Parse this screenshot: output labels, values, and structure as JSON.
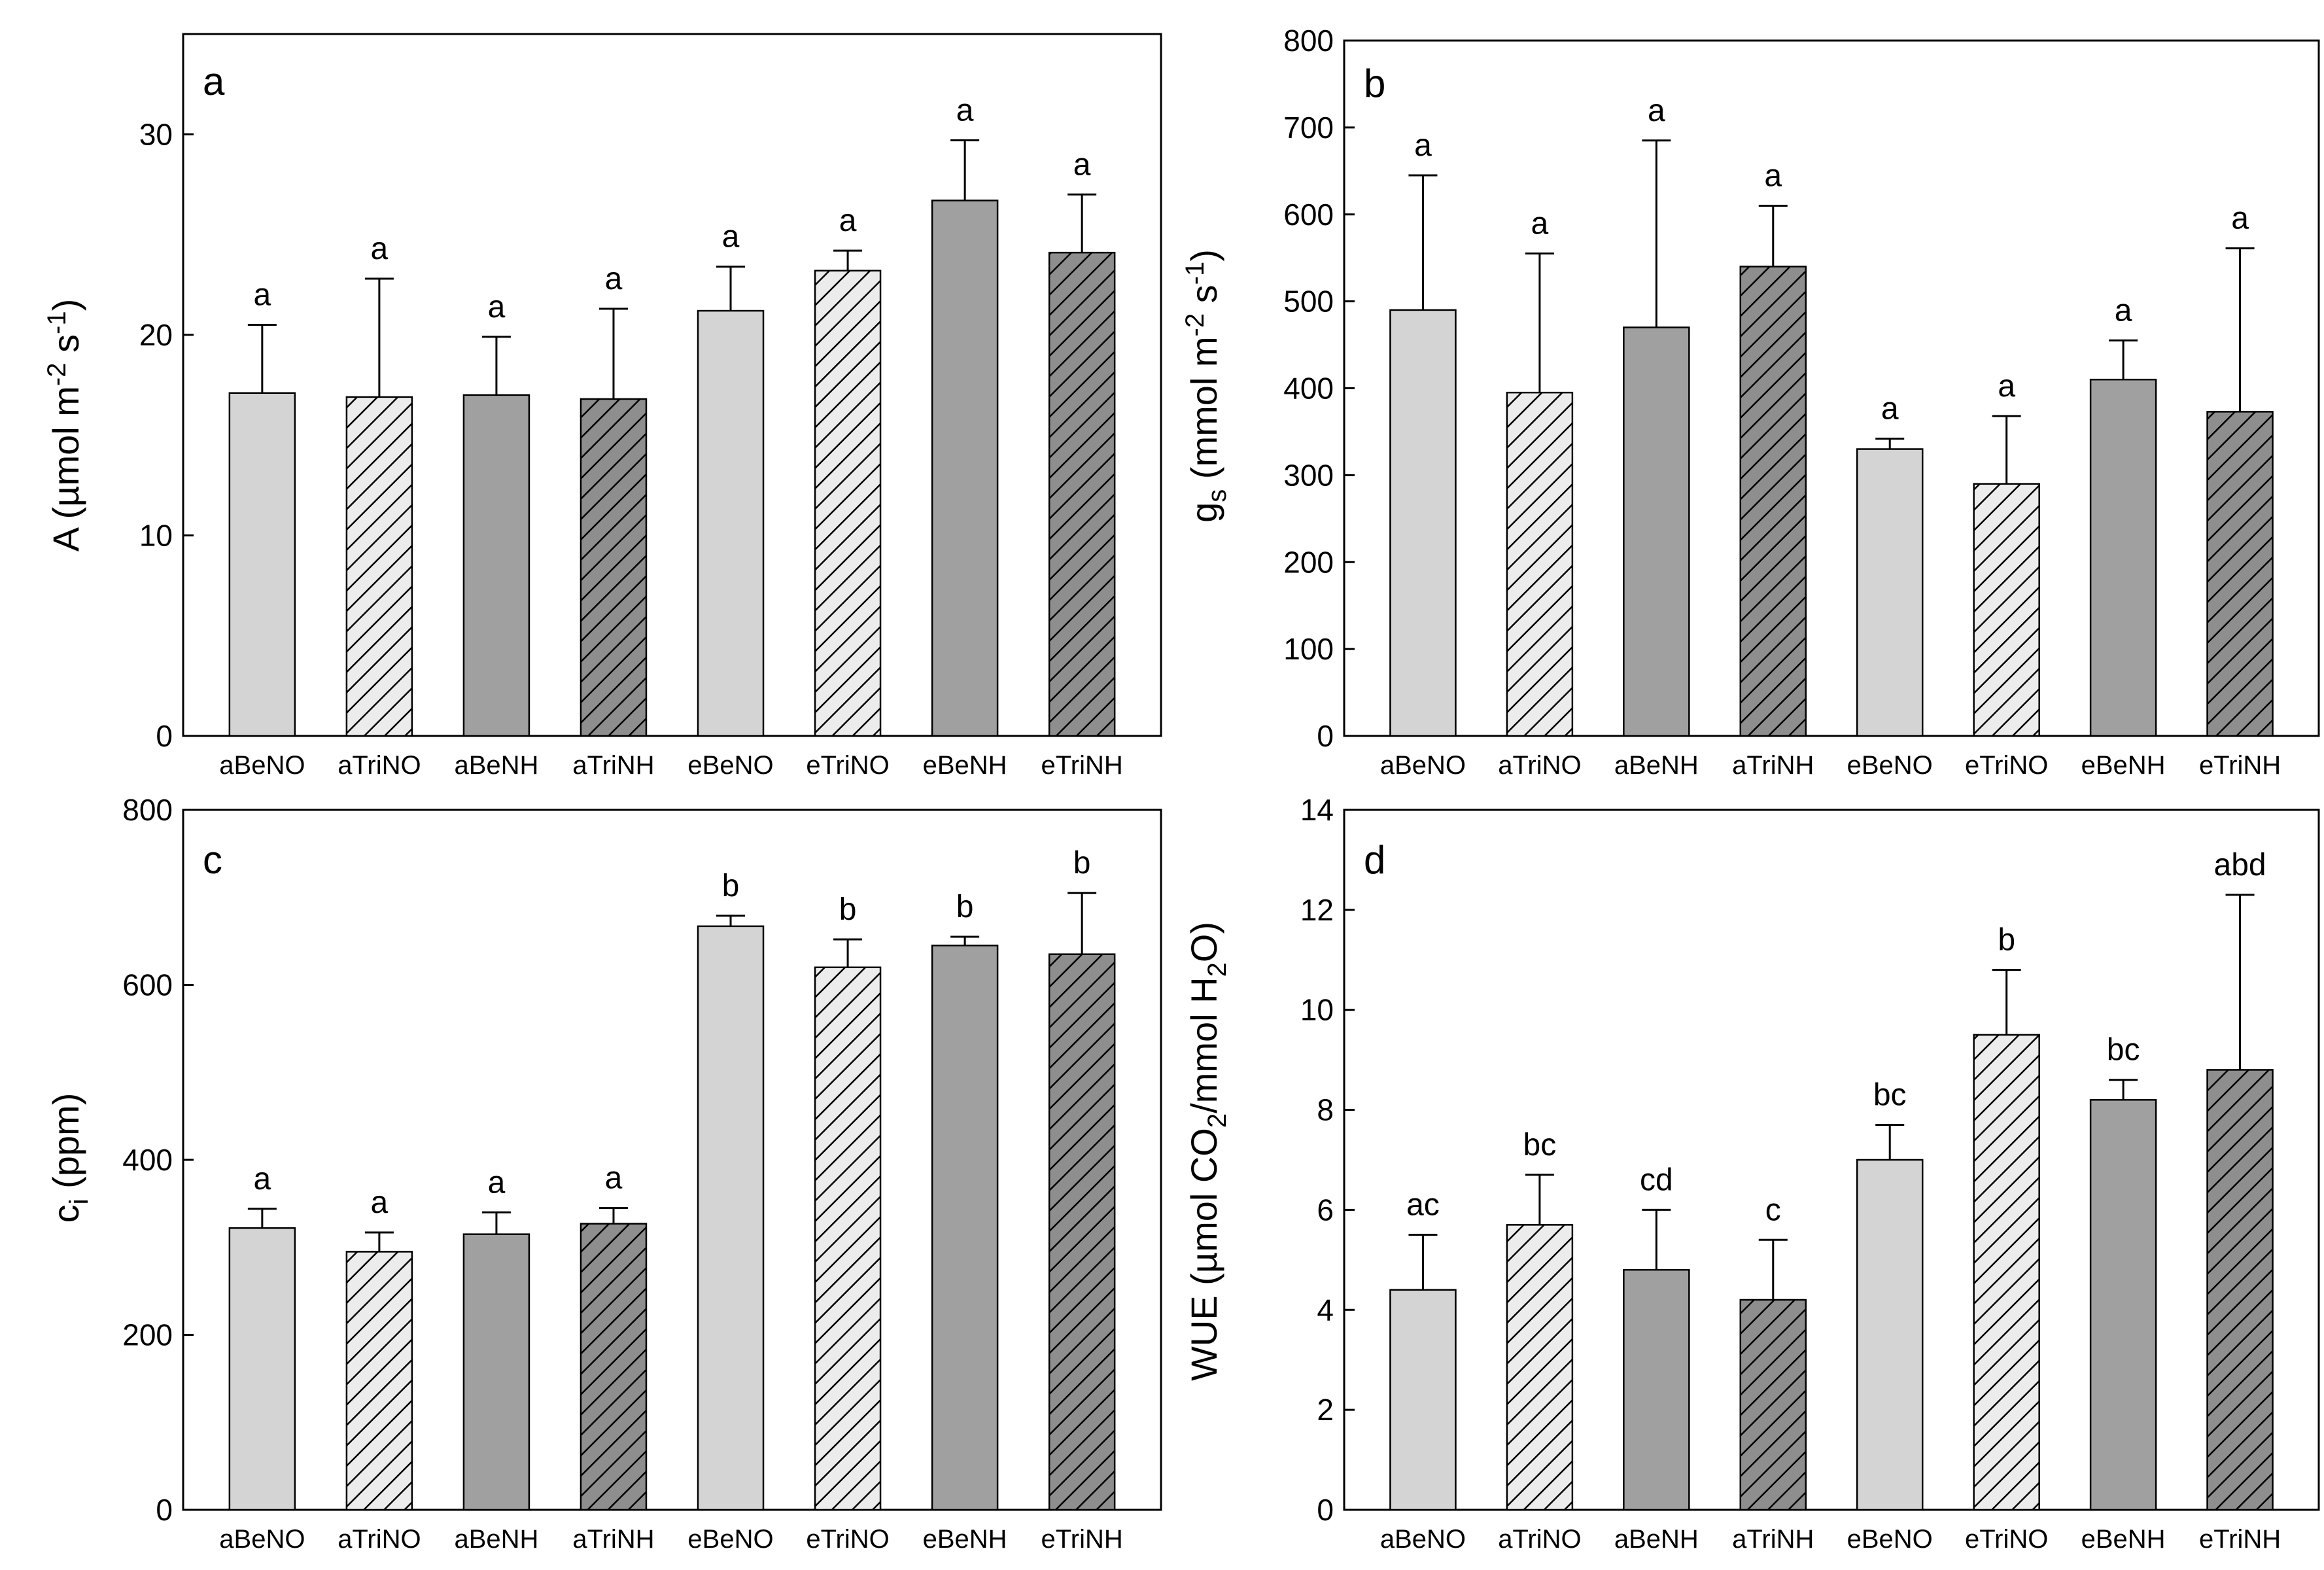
{
  "colors": {
    "light": "#d4d4d4",
    "medium": "#a0a0a0",
    "hatch_light_bg": "#ececec",
    "hatch_dark_bg": "#8e8e8e",
    "ink": "#000000"
  },
  "chart_data": [
    {
      "type": "bar",
      "panel": "a",
      "ylabel_parts": {
        "prefix": "A (µmol m",
        "sup1": "-2",
        "mid": " s",
        "sup2": "-1",
        "suffix": ")"
      },
      "ylim": [
        0,
        35
      ],
      "yticks": [
        0,
        10,
        20,
        30
      ],
      "categories": [
        "aBeNO",
        "aTriNO",
        "aBeNH",
        "aTriNH",
        "eBeNO",
        "eTriNO",
        "eBeNH",
        "eTriNH"
      ],
      "values": [
        17.1,
        16.9,
        17.0,
        16.8,
        21.2,
        23.2,
        26.7,
        24.1
      ],
      "errors": [
        3.4,
        5.9,
        2.9,
        4.5,
        2.2,
        1.0,
        3.0,
        2.9
      ],
      "significance": [
        "a",
        "a",
        "a",
        "a",
        "a",
        "a",
        "a",
        "a"
      ]
    },
    {
      "type": "bar",
      "panel": "b",
      "ylabel_parts": {
        "prefix": "g",
        "sub": "s",
        "mid": " (mmol m",
        "sup1": "-2",
        "mid2": " s",
        "sup2": "-1",
        "suffix": ")"
      },
      "ylim": [
        0,
        800
      ],
      "yticks": [
        0,
        100,
        200,
        300,
        400,
        500,
        600,
        700,
        800
      ],
      "categories": [
        "aBeNO",
        "aTriNO",
        "aBeNH",
        "aTriNH",
        "eBeNO",
        "eTriNO",
        "eBeNH",
        "eTriNH"
      ],
      "values": [
        490,
        395,
        470,
        540,
        330,
        290,
        410,
        373
      ],
      "errors": [
        155,
        160,
        215,
        70,
        12,
        78,
        45,
        188
      ],
      "significance": [
        "a",
        "a",
        "a",
        "a",
        "a",
        "a",
        "a",
        "a"
      ]
    },
    {
      "type": "bar",
      "panel": "c",
      "ylabel_parts": {
        "prefix": "c",
        "sub": "i",
        "suffix": " (ppm)"
      },
      "ylim": [
        0,
        800
      ],
      "yticks": [
        0,
        200,
        400,
        600,
        800
      ],
      "categories": [
        "aBeNO",
        "aTriNO",
        "aBeNH",
        "aTriNH",
        "eBeNO",
        "eTriNO",
        "eBeNH",
        "eTriNH"
      ],
      "values": [
        322,
        295,
        315,
        327,
        667,
        620,
        645,
        635
      ],
      "errors": [
        22,
        22,
        25,
        18,
        12,
        32,
        10,
        70
      ],
      "significance": [
        "a",
        "a",
        "a",
        "a",
        "b",
        "b",
        "b",
        "b"
      ]
    },
    {
      "type": "bar",
      "panel": "d",
      "ylabel_parts": {
        "prefix": "WUE (µmol CO",
        "sub1": "2",
        "mid": "/mmol H",
        "sub2": "2",
        "suffix": "O)"
      },
      "ylim": [
        0,
        14
      ],
      "yticks": [
        0,
        2,
        4,
        6,
        8,
        10,
        12,
        14
      ],
      "categories": [
        "aBeNO",
        "aTriNO",
        "aBeNH",
        "aTriNH",
        "eBeNO",
        "eTriNO",
        "eBeNH",
        "eTriNH"
      ],
      "values": [
        4.4,
        5.7,
        4.8,
        4.2,
        7.0,
        9.5,
        8.2,
        8.8
      ],
      "errors": [
        1.1,
        1.0,
        1.2,
        1.2,
        0.7,
        1.3,
        0.4,
        3.5
      ],
      "significance": [
        "ac",
        "bc",
        "cd",
        "c",
        "bc",
        "b",
        "bc",
        "abd"
      ]
    }
  ]
}
